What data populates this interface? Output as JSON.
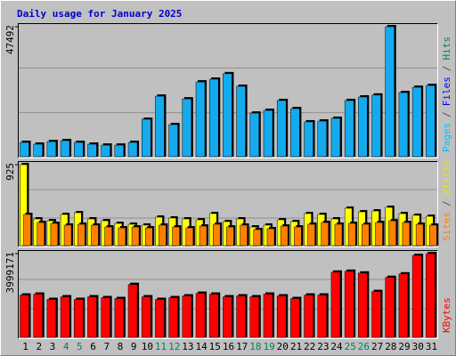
{
  "chart_data": [
    {
      "type": "bar",
      "title": "Daily usage for January 2025",
      "series": [
        {
          "name": "Hits",
          "color": "#14AAEE",
          "values": [
            5200,
            4550,
            5500,
            5850,
            5200,
            4550,
            4200,
            4200,
            5200,
            13650,
            22100,
            11700,
            21100,
            27300,
            28300,
            30300,
            25700,
            15900,
            16900,
            20500,
            17550,
            12700,
            13000,
            14000,
            20500,
            21800,
            22500,
            47492,
            23400,
            25350,
            26000
          ]
        }
      ],
      "ylim": [
        0,
        47492
      ],
      "yticks": [
        47492
      ],
      "right_label": [
        {
          "text": "Pages",
          "color": "#00C0FF"
        },
        {
          "text": "/",
          "color": "#505050"
        },
        {
          "text": "Files",
          "color": "#0000FF"
        },
        {
          "text": "/",
          "color": "#505050"
        },
        {
          "text": "Hits",
          "color": "#00806C"
        }
      ]
    },
    {
      "type": "bar",
      "series": [
        {
          "name": "Visits",
          "color": "#FFFF00",
          "values": [
            925,
            305,
            284,
            356,
            376,
            305,
            284,
            254,
            244,
            234,
            325,
            315,
            305,
            295,
            366,
            274,
            305,
            213,
            234,
            295,
            274,
            366,
            356,
            305,
            427,
            386,
            396,
            437,
            366,
            346,
            335
          ]
        },
        {
          "name": "Sites",
          "color": "#FF8000",
          "values": [
            356,
            264,
            254,
            234,
            244,
            234,
            213,
            203,
            213,
            203,
            234,
            213,
            203,
            223,
            244,
            213,
            234,
            183,
            193,
            223,
            213,
            244,
            264,
            244,
            254,
            244,
            264,
            284,
            264,
            244,
            234
          ]
        }
      ],
      "ylim": [
        0,
        925
      ],
      "yticks": [
        925
      ],
      "right_label": [
        {
          "text": "Sites",
          "color": "#FF8000"
        },
        {
          "text": "/",
          "color": "#505050"
        },
        {
          "text": "Visits",
          "color": "#E8E800"
        }
      ]
    },
    {
      "type": "bar",
      "series": [
        {
          "name": "KBytes",
          "color": "#FF0000",
          "values": [
            2020000,
            2063000,
            1810000,
            1936000,
            1810000,
            1936000,
            1894000,
            1852000,
            2526000,
            1936000,
            1810000,
            1894000,
            1979000,
            2105000,
            2063000,
            1936000,
            1979000,
            1936000,
            2063000,
            1979000,
            1852000,
            2020000,
            2020000,
            3115000,
            3157000,
            3073000,
            2189000,
            2863000,
            3031000,
            3915000,
            3999171
          ]
        }
      ],
      "ylim": [
        0,
        3999171
      ],
      "yticks": [
        3999171
      ],
      "right_label": [
        {
          "text": "KBytes",
          "color": "#FF0000"
        }
      ],
      "categories": [
        "1",
        "2",
        "3",
        "4",
        "5",
        "6",
        "7",
        "8",
        "9",
        "10",
        "11",
        "12",
        "13",
        "14",
        "15",
        "16",
        "17",
        "18",
        "19",
        "20",
        "21",
        "22",
        "23",
        "24",
        "25",
        "26",
        "27",
        "28",
        "29",
        "30",
        "31"
      ],
      "label_colors": [
        "#000000",
        "#000000",
        "#000000",
        "#00805C",
        "#00805C",
        "#000000",
        "#000000",
        "#000000",
        "#000000",
        "#000000",
        "#00805C",
        "#00805C",
        "#000000",
        "#000000",
        "#000000",
        "#000000",
        "#000000",
        "#00805C",
        "#00805C",
        "#000000",
        "#000000",
        "#000000",
        "#000000",
        "#000000",
        "#00805C",
        "#00805C",
        "#000000",
        "#000000",
        "#000000",
        "#000000",
        "#000000"
      ]
    }
  ]
}
